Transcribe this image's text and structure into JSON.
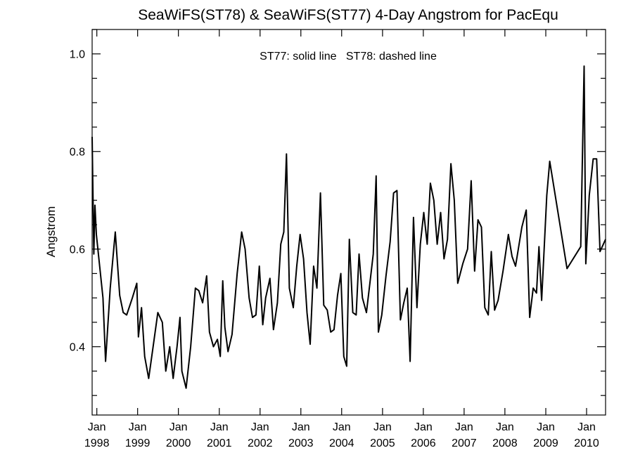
{
  "chart_data": {
    "type": "line",
    "title": "SeaWiFS(ST78) & SeaWiFS(ST77) 4-Day Angstrom for PacEqu",
    "annotation": "ST77: solid line   ST78: dashed line",
    "xlabel": "",
    "ylabel": "Angstrom",
    "xlim": [
      "1997-11-20",
      "2010-06-20"
    ],
    "ylim": [
      0.26,
      1.05
    ],
    "y_ticks": [
      0.4,
      0.6,
      0.8,
      1.0
    ],
    "y_tick_labels": [
      "0.4",
      "0.6",
      "0.8",
      "1.0"
    ],
    "y_minor_step": 0.05,
    "x_ticks": [
      {
        "date": "1998-01-01",
        "month": "Jan",
        "year": "1998"
      },
      {
        "date": "1999-01-01",
        "month": "Jan",
        "year": "1999"
      },
      {
        "date": "2000-01-01",
        "month": "Jan",
        "year": "2000"
      },
      {
        "date": "2001-01-01",
        "month": "Jan",
        "year": "2001"
      },
      {
        "date": "2002-01-01",
        "month": "Jan",
        "year": "2002"
      },
      {
        "date": "2003-01-01",
        "month": "Jan",
        "year": "2003"
      },
      {
        "date": "2004-01-01",
        "month": "Jan",
        "year": "2004"
      },
      {
        "date": "2005-01-01",
        "month": "Jan",
        "year": "2005"
      },
      {
        "date": "2006-01-01",
        "month": "Jan",
        "year": "2006"
      },
      {
        "date": "2007-01-01",
        "month": "Jan",
        "year": "2007"
      },
      {
        "date": "2008-01-01",
        "month": "Jan",
        "year": "2008"
      },
      {
        "date": "2009-01-01",
        "month": "Jan",
        "year": "2009"
      },
      {
        "date": "2010-01-01",
        "month": "Jan",
        "year": "2010"
      }
    ],
    "grid": false,
    "series": [
      {
        "name": "ST77",
        "style": "solid",
        "color": "#000000",
        "points": [
          [
            "1997-11-20",
            0.83
          ],
          [
            "1997-12-05",
            0.59
          ],
          [
            "1997-12-15",
            0.69
          ],
          [
            "1997-12-28",
            0.63
          ],
          [
            "1998-02-25",
            0.5
          ],
          [
            "1998-03-20",
            0.37
          ],
          [
            "1998-05-01",
            0.52
          ],
          [
            "1998-06-15",
            0.635
          ],
          [
            "1998-07-25",
            0.505
          ],
          [
            "1998-08-25",
            0.47
          ],
          [
            "1998-09-25",
            0.465
          ],
          [
            "1998-11-15",
            0.5
          ],
          [
            "1998-12-25",
            0.53
          ],
          [
            "1999-01-08",
            0.42
          ],
          [
            "1999-02-05",
            0.48
          ],
          [
            "1999-03-05",
            0.38
          ],
          [
            "1999-04-10",
            0.335
          ],
          [
            "1999-05-20",
            0.4
          ],
          [
            "1999-07-01",
            0.47
          ],
          [
            "1999-08-10",
            0.45
          ],
          [
            "1999-09-10",
            0.35
          ],
          [
            "1999-10-15",
            0.4
          ],
          [
            "1999-11-15",
            0.335
          ],
          [
            "1999-12-20",
            0.4
          ],
          [
            "2000-01-15",
            0.46
          ],
          [
            "2000-02-01",
            0.35
          ],
          [
            "2000-03-10",
            0.315
          ],
          [
            "2000-04-20",
            0.4
          ],
          [
            "2000-06-01",
            0.52
          ],
          [
            "2000-07-01",
            0.515
          ],
          [
            "2000-08-05",
            0.49
          ],
          [
            "2000-09-10",
            0.545
          ],
          [
            "2000-10-05",
            0.43
          ],
          [
            "2000-11-10",
            0.4
          ],
          [
            "2000-12-15",
            0.415
          ],
          [
            "2001-01-10",
            0.38
          ],
          [
            "2001-02-01",
            0.535
          ],
          [
            "2001-02-20",
            0.44
          ],
          [
            "2001-03-20",
            0.39
          ],
          [
            "2001-04-25",
            0.425
          ],
          [
            "2001-06-10",
            0.55
          ],
          [
            "2001-07-20",
            0.635
          ],
          [
            "2001-08-20",
            0.6
          ],
          [
            "2001-09-25",
            0.5
          ],
          [
            "2001-10-25",
            0.46
          ],
          [
            "2001-11-25",
            0.465
          ],
          [
            "2001-12-25",
            0.565
          ],
          [
            "2002-01-25",
            0.445
          ],
          [
            "2002-02-20",
            0.5
          ],
          [
            "2002-03-30",
            0.54
          ],
          [
            "2002-05-01",
            0.435
          ],
          [
            "2002-06-05",
            0.49
          ],
          [
            "2002-07-05",
            0.61
          ],
          [
            "2002-08-01",
            0.635
          ],
          [
            "2002-08-25",
            0.795
          ],
          [
            "2002-09-20",
            0.52
          ],
          [
            "2002-10-25",
            0.48
          ],
          [
            "2002-11-25",
            0.565
          ],
          [
            "2002-12-25",
            0.63
          ],
          [
            "2003-01-25",
            0.58
          ],
          [
            "2003-02-25",
            0.47
          ],
          [
            "2003-03-25",
            0.405
          ],
          [
            "2003-04-25",
            0.565
          ],
          [
            "2003-05-25",
            0.52
          ],
          [
            "2003-06-25",
            0.715
          ],
          [
            "2003-07-25",
            0.485
          ],
          [
            "2003-08-25",
            0.475
          ],
          [
            "2003-09-25",
            0.43
          ],
          [
            "2003-10-25",
            0.435
          ],
          [
            "2003-11-25",
            0.505
          ],
          [
            "2003-12-25",
            0.55
          ],
          [
            "2004-01-20",
            0.38
          ],
          [
            "2004-02-15",
            0.36
          ],
          [
            "2004-03-10",
            0.62
          ],
          [
            "2004-04-10",
            0.47
          ],
          [
            "2004-05-10",
            0.465
          ],
          [
            "2004-06-05",
            0.59
          ],
          [
            "2004-07-05",
            0.5
          ],
          [
            "2004-08-10",
            0.47
          ],
          [
            "2004-09-10",
            0.53
          ],
          [
            "2004-10-10",
            0.59
          ],
          [
            "2004-11-05",
            0.75
          ],
          [
            "2004-11-25",
            0.43
          ],
          [
            "2004-12-25",
            0.465
          ],
          [
            "2005-02-01",
            0.545
          ],
          [
            "2005-03-10",
            0.615
          ],
          [
            "2005-04-10",
            0.715
          ],
          [
            "2005-05-10",
            0.72
          ],
          [
            "2005-06-10",
            0.455
          ],
          [
            "2005-07-10",
            0.49
          ],
          [
            "2005-08-10",
            0.52
          ],
          [
            "2005-09-05",
            0.37
          ],
          [
            "2005-10-05",
            0.665
          ],
          [
            "2005-11-05",
            0.48
          ],
          [
            "2005-12-05",
            0.61
          ],
          [
            "2006-01-05",
            0.675
          ],
          [
            "2006-02-05",
            0.61
          ],
          [
            "2006-03-05",
            0.735
          ],
          [
            "2006-04-05",
            0.7
          ],
          [
            "2006-05-05",
            0.61
          ],
          [
            "2006-06-05",
            0.675
          ],
          [
            "2006-07-05",
            0.58
          ],
          [
            "2006-08-05",
            0.62
          ],
          [
            "2006-09-05",
            0.775
          ],
          [
            "2006-10-05",
            0.7
          ],
          [
            "2006-11-05",
            0.53
          ],
          [
            "2006-12-20",
            0.57
          ],
          [
            "2007-02-01",
            0.6
          ],
          [
            "2007-03-05",
            0.74
          ],
          [
            "2007-04-05",
            0.555
          ],
          [
            "2007-05-05",
            0.66
          ],
          [
            "2007-06-05",
            0.645
          ],
          [
            "2007-07-05",
            0.48
          ],
          [
            "2007-08-05",
            0.465
          ],
          [
            "2007-09-01",
            0.595
          ],
          [
            "2007-10-01",
            0.475
          ],
          [
            "2007-11-01",
            0.495
          ],
          [
            "2007-12-15",
            0.555
          ],
          [
            "2008-02-01",
            0.63
          ],
          [
            "2008-03-05",
            0.585
          ],
          [
            "2008-04-05",
            0.565
          ],
          [
            "2008-06-01",
            0.645
          ],
          [
            "2008-07-10",
            0.68
          ],
          [
            "2008-08-10",
            0.46
          ],
          [
            "2008-09-10",
            0.52
          ],
          [
            "2008-10-10",
            0.51
          ],
          [
            "2008-11-01",
            0.605
          ],
          [
            "2008-11-25",
            0.495
          ],
          [
            "2009-01-10",
            0.71
          ],
          [
            "2009-02-05",
            0.78
          ],
          [
            "2009-07-10",
            0.56
          ],
          [
            "2009-11-10",
            0.605
          ],
          [
            "2009-12-10",
            0.975
          ],
          [
            "2009-12-25",
            0.57
          ],
          [
            "2010-01-25",
            0.71
          ],
          [
            "2010-03-01",
            0.785
          ],
          [
            "2010-04-01",
            0.785
          ],
          [
            "2010-05-01",
            0.595
          ],
          [
            "2010-06-20",
            0.62
          ]
        ]
      }
    ]
  }
}
